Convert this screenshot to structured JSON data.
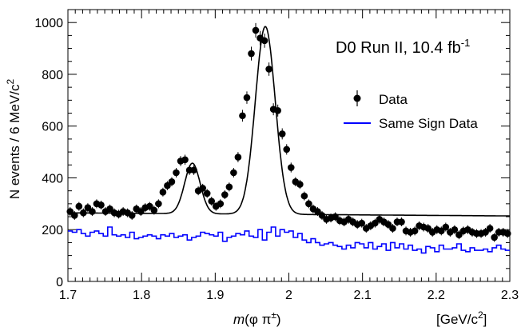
{
  "chart_data": {
    "type": "scatter",
    "annotation_main": "D0 Run II, 10.4 fb",
    "annotation_sup": "-1",
    "xlabel_m": "m",
    "xlabel_rest": "(φ π",
    "xlabel_sup": "±",
    "xlabel_close": ")",
    "xunit_main": "[GeV/c",
    "xunit_sup": "2",
    "xunit_close": "]",
    "ylabel_main": "N events / 6 MeV/c",
    "ylabel_sup": "2",
    "xlim": [
      1.7,
      2.3
    ],
    "ylim": [
      0,
      1050
    ],
    "x_ticks": [
      1.7,
      1.8,
      1.9,
      2.0,
      2.1,
      2.2,
      2.3
    ],
    "x_tick_labels": [
      "1.7",
      "1.8",
      "1.9",
      "2",
      "2.1",
      "2.2",
      "2.3"
    ],
    "y_ticks": [
      0,
      200,
      400,
      600,
      800,
      1000
    ],
    "y_tick_labels": [
      "0",
      "200",
      "400",
      "600",
      "800",
      "1000"
    ],
    "legend": {
      "placement": "right",
      "entries": [
        "Data",
        "Same Sign Data"
      ]
    },
    "colors": {
      "data": "#000000",
      "fit": "#000000",
      "same_sign": "#0000ff"
    },
    "series": [
      {
        "name": "Data",
        "type": "scatter",
        "x": [
          1.703,
          1.709,
          1.715,
          1.721,
          1.727,
          1.733,
          1.739,
          1.745,
          1.751,
          1.757,
          1.763,
          1.769,
          1.775,
          1.781,
          1.787,
          1.793,
          1.799,
          1.805,
          1.811,
          1.817,
          1.823,
          1.829,
          1.835,
          1.841,
          1.847,
          1.853,
          1.859,
          1.865,
          1.871,
          1.877,
          1.883,
          1.889,
          1.895,
          1.901,
          1.907,
          1.913,
          1.919,
          1.925,
          1.931,
          1.937,
          1.943,
          1.949,
          1.955,
          1.961,
          1.967,
          1.973,
          1.979,
          1.985,
          1.991,
          1.997,
          2.003,
          2.009,
          2.015,
          2.021,
          2.027,
          2.033,
          2.039,
          2.045,
          2.051,
          2.057,
          2.063,
          2.069,
          2.075,
          2.081,
          2.087,
          2.093,
          2.099,
          2.105,
          2.111,
          2.117,
          2.123,
          2.129,
          2.135,
          2.141,
          2.147,
          2.153,
          2.159,
          2.165,
          2.171,
          2.177,
          2.183,
          2.189,
          2.195,
          2.201,
          2.207,
          2.213,
          2.219,
          2.225,
          2.231,
          2.237,
          2.243,
          2.249,
          2.255,
          2.261,
          2.267,
          2.273,
          2.279,
          2.285,
          2.291,
          2.297
        ],
        "y": [
          270,
          255,
          290,
          265,
          285,
          270,
          300,
          295,
          270,
          280,
          265,
          260,
          270,
          265,
          255,
          280,
          270,
          285,
          290,
          275,
          300,
          345,
          370,
          385,
          420,
          465,
          470,
          430,
          430,
          350,
          360,
          340,
          310,
          290,
          300,
          335,
          365,
          420,
          480,
          640,
          710,
          880,
          970,
          940,
          930,
          820,
          665,
          660,
          570,
          510,
          440,
          385,
          375,
          330,
          300,
          280,
          270,
          255,
          240,
          245,
          250,
          235,
          230,
          240,
          230,
          220,
          225,
          205,
          215,
          225,
          240,
          230,
          220,
          205,
          230,
          230,
          195,
          190,
          195,
          215,
          210,
          205,
          190,
          200,
          195,
          210,
          190,
          200,
          180,
          195,
          200,
          190,
          185,
          185,
          190,
          205,
          170,
          190,
          190,
          185
        ],
        "yerr": 17
      },
      {
        "name": "Same Sign Data",
        "type": "step",
        "x_start": 1.7,
        "bin_width": 0.006,
        "values": [
          195,
          190,
          200,
          185,
          175,
          190,
          195,
          185,
          175,
          210,
          180,
          175,
          180,
          170,
          190,
          165,
          170,
          175,
          180,
          175,
          165,
          180,
          175,
          185,
          170,
          175,
          180,
          160,
          170,
          175,
          190,
          185,
          180,
          175,
          190,
          155,
          170,
          175,
          185,
          180,
          195,
          175,
          170,
          200,
          160,
          190,
          210,
          175,
          200,
          190,
          195,
          170,
          185,
          160,
          150,
          165,
          150,
          140,
          145,
          150,
          140,
          135,
          125,
          140,
          130,
          150,
          145,
          130,
          150,
          125,
          135,
          145,
          120,
          150,
          130,
          145,
          125,
          140,
          120,
          125,
          110,
          135,
          130,
          115,
          140,
          125,
          125,
          130,
          145,
          120,
          115,
          130,
          120,
          120,
          125,
          115,
          130,
          140,
          125,
          120
        ]
      }
    ],
    "fit": {
      "name": "fit",
      "type": "line",
      "background": {
        "a": 265,
        "b": -0.2
      },
      "peaks": [
        {
          "mean": 1.869,
          "sigma": 0.0105,
          "amp": 195
        },
        {
          "mean": 1.968,
          "sigma": 0.0135,
          "amp": 725
        }
      ]
    }
  }
}
